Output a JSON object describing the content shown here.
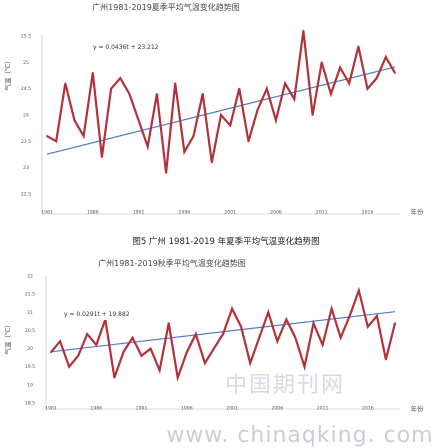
{
  "page": {
    "figure_caption": "图5 广州 1981-2019 年夏季平均气温变化趋势图",
    "watermark_cn": "中国期刊网",
    "watermark_url": "www. chinaqking. com"
  },
  "chart_data": [
    {
      "type": "line",
      "title": "广州1981-2019夏季平均气温变化趋势图",
      "xlabel": "年份",
      "ylabel": "气温（℃）",
      "x": [
        1981,
        1982,
        1983,
        1984,
        1985,
        1986,
        1987,
        1988,
        1989,
        1990,
        1991,
        1992,
        1993,
        1994,
        1995,
        1996,
        1997,
        1998,
        1999,
        2000,
        2001,
        2002,
        2003,
        2004,
        2005,
        2006,
        2007,
        2008,
        2009,
        2010,
        2011,
        2012,
        2013,
        2014,
        2015,
        2016,
        2017,
        2018,
        2019
      ],
      "series": [
        {
          "values": [
            23.6,
            23.5,
            24.6,
            23.9,
            23.6,
            24.8,
            23.2,
            24.5,
            24.7,
            24.4,
            23.9,
            23.4,
            24.4,
            22.9,
            24.6,
            23.3,
            23.6,
            24.4,
            23.1,
            24.0,
            23.8,
            24.5,
            23.5,
            24.1,
            24.5,
            23.9,
            24.6,
            24.3,
            25.6,
            24.0,
            25.0,
            24.4,
            24.9,
            24.6,
            25.3,
            24.5,
            24.7,
            25.1,
            24.8
          ],
          "color": "#b3323a"
        }
      ],
      "trendline": {
        "equation": "y = 0.0436t + 23.212",
        "slope": 0.0436,
        "intercept": 23.212,
        "color": "#4a7fc1"
      },
      "xticks": [
        "1981",
        "1986",
        "1991",
        "1996",
        "2001",
        "2006",
        "2011",
        "2016"
      ],
      "yticks": [
        "22.5",
        "23",
        "23.5",
        "24",
        "24.5",
        "25",
        "25.5"
      ],
      "ylim": [
        22.5,
        25.5
      ],
      "grid": false
    },
    {
      "type": "line",
      "title": "广州1981-2019秋季平均气温变化趋势图",
      "xlabel": "年份",
      "ylabel": "气温（℃）",
      "x": [
        1981,
        1982,
        1983,
        1984,
        1985,
        1986,
        1987,
        1988,
        1989,
        1990,
        1991,
        1992,
        1993,
        1994,
        1995,
        1996,
        1997,
        1998,
        1999,
        2000,
        2001,
        2002,
        2003,
        2004,
        2005,
        2006,
        2007,
        2008,
        2009,
        2010,
        2011,
        2012,
        2013,
        2014,
        2015,
        2016,
        2017,
        2018,
        2019
      ],
      "series": [
        {
          "values": [
            19.9,
            20.2,
            19.5,
            19.8,
            20.4,
            20.1,
            20.8,
            19.2,
            19.9,
            20.3,
            19.8,
            20.0,
            19.4,
            20.7,
            19.2,
            19.9,
            20.4,
            19.6,
            20.0,
            20.4,
            21.1,
            20.6,
            19.6,
            20.3,
            21.0,
            20.2,
            20.8,
            20.3,
            19.5,
            20.7,
            20.1,
            21.1,
            20.3,
            20.9,
            21.6,
            20.6,
            20.9,
            19.7,
            20.7
          ],
          "color": "#b3323a"
        }
      ],
      "trendline": {
        "equation": "y = 0.0291t + 19.882",
        "slope": 0.0291,
        "intercept": 19.882,
        "color": "#4a7fc1"
      },
      "xticks": [
        "1981",
        "1986",
        "1991",
        "1996",
        "2001",
        "2006",
        "2011",
        "2016"
      ],
      "yticks": [
        "18.5",
        "19",
        "19.5",
        "20",
        "20.5",
        "21",
        "21.5",
        "22"
      ],
      "ylim": [
        18.5,
        22
      ],
      "grid": false
    }
  ]
}
